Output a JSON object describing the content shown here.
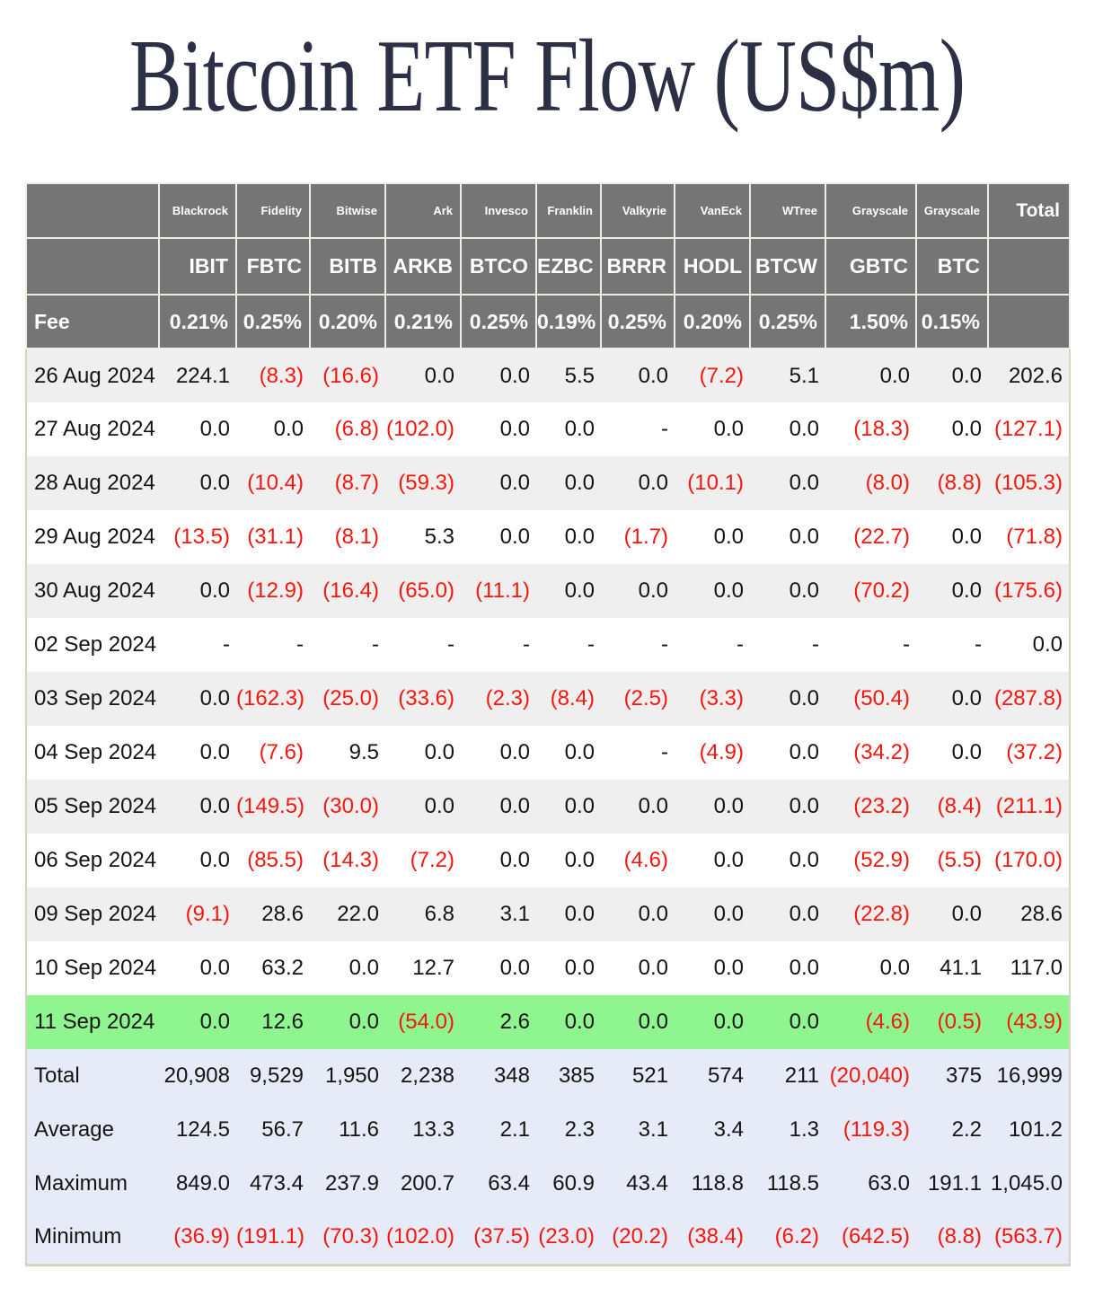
{
  "title": "Bitcoin ETF Flow (US$m)",
  "colors": {
    "header_bg": "#757575",
    "row_alt": "#efefef",
    "highlight_green": "#8ff58f",
    "summary_bg": "#e7ebf7",
    "negative_red": "#f8150c",
    "title_color": "#2d3044",
    "outer_border": "#d9d1c1"
  },
  "chart_data": {
    "type": "table",
    "title": "Bitcoin ETF Flow (US$m)",
    "fee_row_label": "Fee",
    "total_column_label": "Total",
    "columns": [
      {
        "issuer": "Blackrock",
        "ticker": "IBIT",
        "fee": "0.21%"
      },
      {
        "issuer": "Fidelity",
        "ticker": "FBTC",
        "fee": "0.25%"
      },
      {
        "issuer": "Bitwise",
        "ticker": "BITB",
        "fee": "0.20%"
      },
      {
        "issuer": "Ark",
        "ticker": "ARKB",
        "fee": "0.21%"
      },
      {
        "issuer": "Invesco",
        "ticker": "BTCO",
        "fee": "0.25%"
      },
      {
        "issuer": "Franklin",
        "ticker": "EZBC",
        "fee": "0.19%"
      },
      {
        "issuer": "Valkyrie",
        "ticker": "BRRR",
        "fee": "0.25%"
      },
      {
        "issuer": "VanEck",
        "ticker": "HODL",
        "fee": "0.20%"
      },
      {
        "issuer": "WTree",
        "ticker": "BTCW",
        "fee": "0.25%"
      },
      {
        "issuer": "Grayscale",
        "ticker": "GBTC",
        "fee": "1.50%"
      },
      {
        "issuer": "Grayscale",
        "ticker": "BTC",
        "fee": "0.15%"
      }
    ],
    "rows": [
      {
        "label": "26 Aug 2024",
        "highlight": false,
        "values": [
          "224.1",
          "(8.3)",
          "(16.6)",
          "0.0",
          "0.0",
          "5.5",
          "0.0",
          "(7.2)",
          "5.1",
          "0.0",
          "0.0",
          "202.6"
        ]
      },
      {
        "label": "27 Aug 2024",
        "highlight": false,
        "values": [
          "0.0",
          "0.0",
          "(6.8)",
          "(102.0)",
          "0.0",
          "0.0",
          "-",
          "0.0",
          "0.0",
          "(18.3)",
          "0.0",
          "(127.1)"
        ]
      },
      {
        "label": "28 Aug 2024",
        "highlight": false,
        "values": [
          "0.0",
          "(10.4)",
          "(8.7)",
          "(59.3)",
          "0.0",
          "0.0",
          "0.0",
          "(10.1)",
          "0.0",
          "(8.0)",
          "(8.8)",
          "(105.3)"
        ]
      },
      {
        "label": "29 Aug 2024",
        "highlight": false,
        "values": [
          "(13.5)",
          "(31.1)",
          "(8.1)",
          "5.3",
          "0.0",
          "0.0",
          "(1.7)",
          "0.0",
          "0.0",
          "(22.7)",
          "0.0",
          "(71.8)"
        ]
      },
      {
        "label": "30 Aug 2024",
        "highlight": false,
        "values": [
          "0.0",
          "(12.9)",
          "(16.4)",
          "(65.0)",
          "(11.1)",
          "0.0",
          "0.0",
          "0.0",
          "0.0",
          "(70.2)",
          "0.0",
          "(175.6)"
        ]
      },
      {
        "label": "02 Sep 2024",
        "highlight": false,
        "values": [
          "-",
          "-",
          "-",
          "-",
          "-",
          "-",
          "-",
          "-",
          "-",
          "-",
          "-",
          "0.0"
        ]
      },
      {
        "label": "03 Sep 2024",
        "highlight": false,
        "values": [
          "0.0",
          "(162.3)",
          "(25.0)",
          "(33.6)",
          "(2.3)",
          "(8.4)",
          "(2.5)",
          "(3.3)",
          "0.0",
          "(50.4)",
          "0.0",
          "(287.8)"
        ]
      },
      {
        "label": "04 Sep 2024",
        "highlight": false,
        "values": [
          "0.0",
          "(7.6)",
          "9.5",
          "0.0",
          "0.0",
          "0.0",
          "-",
          "(4.9)",
          "0.0",
          "(34.2)",
          "0.0",
          "(37.2)"
        ]
      },
      {
        "label": "05 Sep 2024",
        "highlight": false,
        "values": [
          "0.0",
          "(149.5)",
          "(30.0)",
          "0.0",
          "0.0",
          "0.0",
          "0.0",
          "0.0",
          "0.0",
          "(23.2)",
          "(8.4)",
          "(211.1)"
        ]
      },
      {
        "label": "06 Sep 2024",
        "highlight": false,
        "values": [
          "0.0",
          "(85.5)",
          "(14.3)",
          "(7.2)",
          "0.0",
          "0.0",
          "(4.6)",
          "0.0",
          "0.0",
          "(52.9)",
          "(5.5)",
          "(170.0)"
        ]
      },
      {
        "label": "09 Sep 2024",
        "highlight": false,
        "values": [
          "(9.1)",
          "28.6",
          "22.0",
          "6.8",
          "3.1",
          "0.0",
          "0.0",
          "0.0",
          "0.0",
          "(22.8)",
          "0.0",
          "28.6"
        ]
      },
      {
        "label": "10 Sep 2024",
        "highlight": false,
        "values": [
          "0.0",
          "63.2",
          "0.0",
          "12.7",
          "0.0",
          "0.0",
          "0.0",
          "0.0",
          "0.0",
          "0.0",
          "41.1",
          "117.0"
        ]
      },
      {
        "label": "11 Sep 2024",
        "highlight": true,
        "values": [
          "0.0",
          "12.6",
          "0.0",
          "(54.0)",
          "2.6",
          "0.0",
          "0.0",
          "0.0",
          "0.0",
          "(4.6)",
          "(0.5)",
          "(43.9)"
        ]
      }
    ],
    "summary_rows": [
      {
        "label": "Total",
        "values": [
          "20,908",
          "9,529",
          "1,950",
          "2,238",
          "348",
          "385",
          "521",
          "574",
          "211",
          "(20,040)",
          "375",
          "16,999"
        ]
      },
      {
        "label": "Average",
        "values": [
          "124.5",
          "56.7",
          "11.6",
          "13.3",
          "2.1",
          "2.3",
          "3.1",
          "3.4",
          "1.3",
          "(119.3)",
          "2.2",
          "101.2"
        ]
      },
      {
        "label": "Maximum",
        "values": [
          "849.0",
          "473.4",
          "237.9",
          "200.7",
          "63.4",
          "60.9",
          "43.4",
          "118.8",
          "118.5",
          "63.0",
          "191.1",
          "1,045.0"
        ]
      },
      {
        "label": "Minimum",
        "values": [
          "(36.9)",
          "(191.1)",
          "(70.3)",
          "(102.0)",
          "(37.5)",
          "(23.0)",
          "(20.2)",
          "(38.4)",
          "(6.2)",
          "(642.5)",
          "(8.8)",
          "(563.7)"
        ]
      }
    ]
  }
}
